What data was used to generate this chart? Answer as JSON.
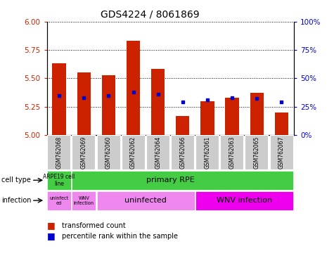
{
  "title": "GDS4224 / 8061869",
  "samples": [
    "GSM762068",
    "GSM762069",
    "GSM762060",
    "GSM762062",
    "GSM762064",
    "GSM762066",
    "GSM762061",
    "GSM762063",
    "GSM762065",
    "GSM762067"
  ],
  "bar_values": [
    5.63,
    5.55,
    5.53,
    5.83,
    5.58,
    5.17,
    5.3,
    5.33,
    5.37,
    5.2
  ],
  "bar_base": 5.0,
  "blue_values": [
    35,
    33,
    35,
    38,
    36,
    29,
    31,
    33,
    32,
    29
  ],
  "ylim_left": [
    5.0,
    6.0
  ],
  "ylim_right": [
    0,
    100
  ],
  "yticks_left": [
    5.0,
    5.25,
    5.5,
    5.75,
    6.0
  ],
  "yticks_right": [
    0,
    25,
    50,
    75,
    100
  ],
  "bar_color": "#cc2200",
  "blue_color": "#0000cc",
  "legend_bar_label": "transformed count",
  "legend_blue_label": "percentile rank within the sample",
  "tick_label_color_left": "#cc2200",
  "tick_label_color_right": "#0000cc",
  "cell_type_green": "#44cc44",
  "infection_pink": "#ee88ee",
  "infection_magenta": "#ee00ee",
  "xtick_bg": "#cccccc"
}
